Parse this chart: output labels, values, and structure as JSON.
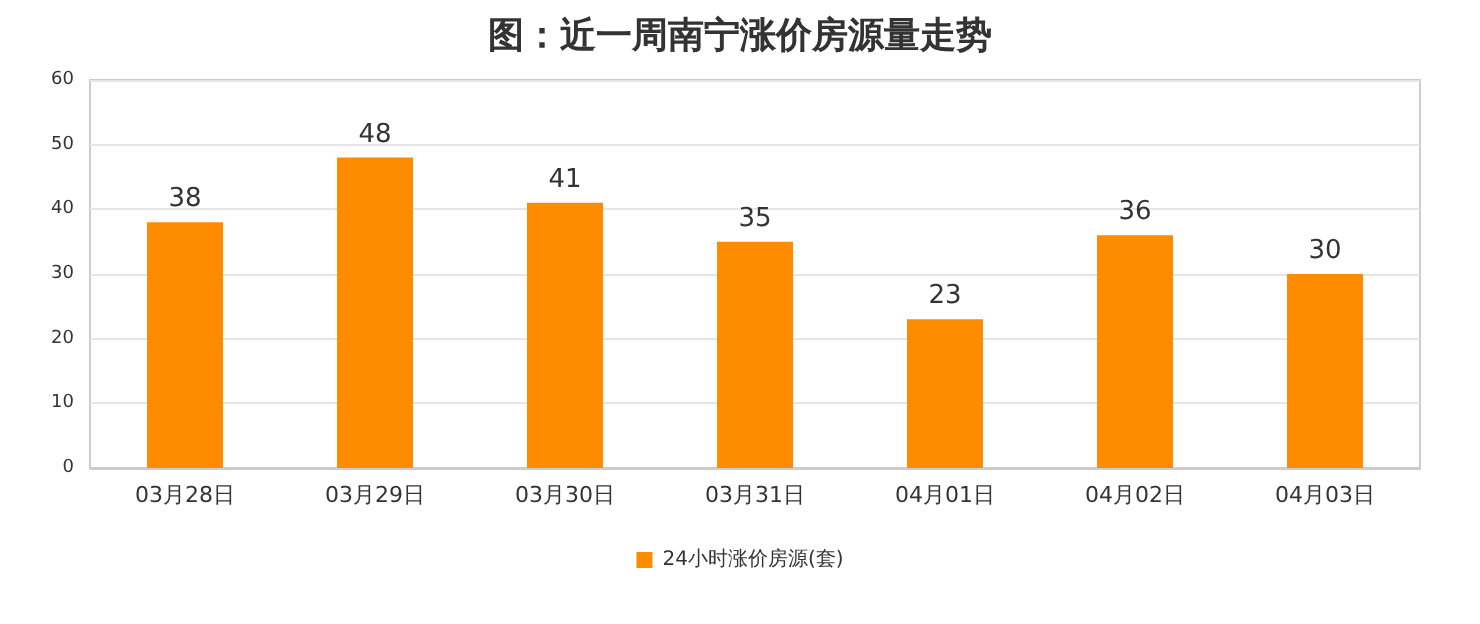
{
  "chart_data": {
    "type": "bar",
    "title": "图：近一周南宁涨价房源量走势",
    "categories": [
      "03月28日",
      "03月29日",
      "03月30日",
      "03月31日",
      "04月01日",
      "04月02日",
      "04月03日"
    ],
    "series": [
      {
        "name": "24小时涨价房源(套)",
        "color": "#ff8c00",
        "values": [
          38,
          48,
          41,
          35,
          23,
          36,
          30
        ]
      }
    ],
    "ylim": [
      0,
      60
    ],
    "yticks": [
      0,
      10,
      20,
      30,
      40,
      50,
      60
    ],
    "grid": "y",
    "legend": "bottom",
    "data_labels": true
  }
}
